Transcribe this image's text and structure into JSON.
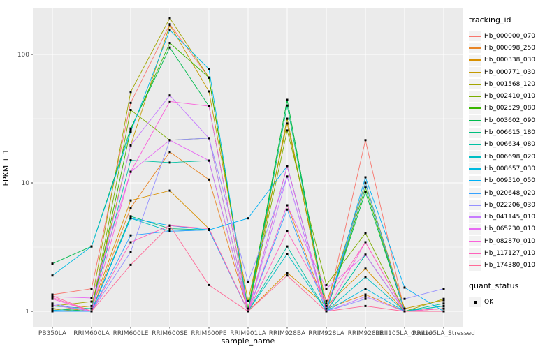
{
  "legend": {
    "tracking_title": "tracking_id",
    "quant_title": "quant_status",
    "quant_ok_label": "OK"
  },
  "colors": {
    "panel_bg": "#EBEBEB",
    "grid": "#FFFFFF",
    "axis_text": "#4D4D4D",
    "tick_mark": "#333333",
    "point": "#000000",
    "legend_key_bg": "#F2F2F2"
  },
  "chart_data": {
    "type": "line",
    "title": "",
    "xlabel": "sample_name",
    "ylabel": "FPKM + 1",
    "yscale": "log10",
    "ylim": [
      0.76,
      231
    ],
    "yticks": [
      1,
      10,
      100
    ],
    "ytick_labels": [
      "1",
      "10",
      "100"
    ],
    "minor_gridlines": [
      3.1623,
      31.623
    ],
    "grid": true,
    "legend_position": "right",
    "point_marker": "black-square",
    "x_categories": [
      "PB350LA",
      "RRIM600LA",
      "RRIM600LE",
      "RRIM600SE",
      "RRIM600PE",
      "RRIM901LA",
      "RRIM928BA",
      "RRIM928LA",
      "RRIM928LE",
      "RRII105LA_Control",
      "RRII105LA_Stressed"
    ],
    "series": [
      {
        "name": "Hb_000000_070",
        "color": "#F8766D",
        "values": [
          1.35,
          1.5,
          42,
          172,
          66,
          1.0,
          31.6,
          1.0,
          21.5,
          1.0,
          1.05
        ]
      },
      {
        "name": "Hb_000098_250",
        "color": "#E88526",
        "values": [
          1.05,
          1.0,
          6.4,
          17.4,
          10.6,
          1.0,
          6.7,
          1.05,
          1.35,
          1.0,
          1.0
        ]
      },
      {
        "name": "Hb_000338_030",
        "color": "#D89000",
        "values": [
          1.0,
          1.05,
          7.3,
          8.7,
          4.4,
          1.0,
          2.0,
          1.1,
          2.15,
          1.0,
          1.05
        ]
      },
      {
        "name": "Hb_000771_030",
        "color": "#C49A00",
        "values": [
          1.02,
          1.1,
          19.6,
          170,
          51.5,
          1.2,
          29,
          1.15,
          10,
          1.05,
          1.22
        ]
      },
      {
        "name": "Hb_001568_120",
        "color": "#A3A500",
        "values": [
          1.1,
          1.19,
          51,
          192,
          66,
          1.0,
          31.6,
          1.0,
          10,
          1.0,
          1.25
        ]
      },
      {
        "name": "Hb_002410_010",
        "color": "#7CAE00",
        "values": [
          1.05,
          1.0,
          37,
          21.5,
          22.3,
          1.0,
          25.6,
          1.6,
          4.06,
          1.0,
          1.0
        ]
      },
      {
        "name": "Hb_002529_080",
        "color": "#39B600",
        "values": [
          1.0,
          1.0,
          26,
          123,
          66,
          1.05,
          44.3,
          1.0,
          9.2,
          1.0,
          1.0
        ]
      },
      {
        "name": "Hb_003602_090",
        "color": "#00BB4E",
        "values": [
          2.35,
          3.2,
          26.5,
          113,
          39.6,
          1.0,
          44.3,
          1.0,
          8.5,
          1.0,
          1.1
        ]
      },
      {
        "name": "Hb_006615_180",
        "color": "#00BF7D",
        "values": [
          1.05,
          1.0,
          5.5,
          4.4,
          4.3,
          1.0,
          40,
          1.0,
          2.76,
          1.0,
          1.0
        ]
      },
      {
        "name": "Hb_006634_080",
        "color": "#00C1A3",
        "values": [
          1.1,
          1.05,
          15,
          14.4,
          14.9,
          1.0,
          3.2,
          1.0,
          2.76,
          1.0,
          1.15
        ]
      },
      {
        "name": "Hb_006698_020",
        "color": "#00BFC4",
        "values": [
          1.0,
          1.0,
          5.3,
          4.2,
          4.3,
          1.0,
          2.8,
          1.0,
          1.85,
          1.0,
          1.1
        ]
      },
      {
        "name": "Hb_008657_030",
        "color": "#00BAE0",
        "values": [
          1.9,
          3.2,
          25,
          155,
          77,
          1.0,
          13.5,
          1.0,
          1.5,
          1.0,
          1.0
        ]
      },
      {
        "name": "Hb_009510_050",
        "color": "#00B0F6",
        "values": [
          1.02,
          1.0,
          5.3,
          4.65,
          4.3,
          5.3,
          13.5,
          1.0,
          11.05,
          1.53,
          1.0
        ]
      },
      {
        "name": "Hb_020648_020",
        "color": "#35A2FF",
        "values": [
          1.0,
          1.0,
          3.9,
          4.2,
          4.3,
          1.0,
          6.2,
          1.0,
          10,
          1.0,
          1.0
        ]
      },
      {
        "name": "Hb_022206_030",
        "color": "#9590FF",
        "values": [
          1.15,
          1.0,
          2.9,
          21.5,
          22.3,
          1.7,
          11.2,
          1.0,
          1.25,
          1.25,
          1.5
        ]
      },
      {
        "name": "Hb_041145_010",
        "color": "#C77CFF",
        "values": [
          1.12,
          1.0,
          19.6,
          48,
          22.3,
          1.0,
          11.2,
          1.0,
          1.3,
          1.0,
          1.0
        ]
      },
      {
        "name": "Hb_065230_010",
        "color": "#E76BF3",
        "values": [
          1.3,
          1.27,
          12.2,
          21.5,
          14.9,
          1.0,
          6.7,
          1.5,
          2.76,
          1.0,
          1.0
        ]
      },
      {
        "name": "Hb_082870_010",
        "color": "#FA62DB",
        "values": [
          1.25,
          1.0,
          12.2,
          43,
          39.6,
          1.0,
          13.5,
          1.0,
          3.45,
          1.0,
          1.05
        ]
      },
      {
        "name": "Hb_117127_010",
        "color": "#FF62BC",
        "values": [
          1.28,
          1.0,
          3.45,
          4.65,
          4.4,
          1.0,
          4.2,
          1.2,
          3.45,
          1.0,
          1.0
        ]
      },
      {
        "name": "Hb_174380_010",
        "color": "#FF6A98",
        "values": [
          1.32,
          1.0,
          2.3,
          4.65,
          1.6,
          1.0,
          1.9,
          1.0,
          1.1,
          1.0,
          1.0
        ]
      }
    ]
  }
}
